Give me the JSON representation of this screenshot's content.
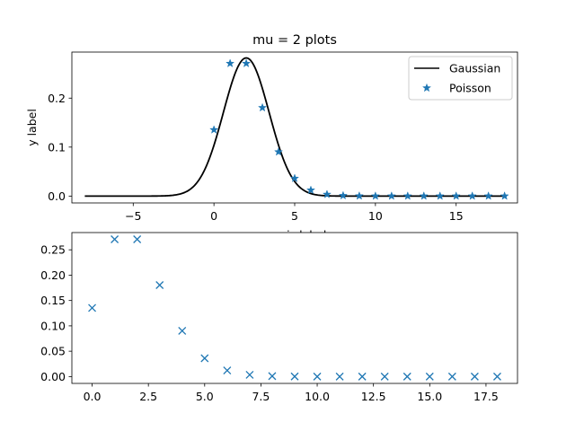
{
  "chart_data": [
    {
      "type": "line",
      "title": "mu = 2 plots",
      "xlabel": "x axis label",
      "ylabel": "y label",
      "xlim": [
        -8.8,
        18.8
      ],
      "ylim": [
        -0.014,
        0.294
      ],
      "xticks": [
        -5,
        0,
        5,
        10,
        15
      ],
      "yticks": [
        0.0,
        0.1,
        0.2
      ],
      "ytick_labels": [
        "0.0",
        "0.1",
        "0.2"
      ],
      "grid": false,
      "legend_position": "top-right",
      "series": [
        {
          "name": "Gaussian",
          "kind": "line",
          "color": "#000000",
          "x_range": [
            -8,
            18
          ],
          "mean": 2,
          "std": 1.4142,
          "formula": "exp(-(x-2)^2/4)/sqrt(4*pi)"
        },
        {
          "name": "Poisson",
          "kind": "scatter",
          "marker": "star",
          "color": "#1f77b4",
          "x": [
            0,
            1,
            2,
            3,
            4,
            5,
            6,
            7,
            8,
            9,
            10,
            11,
            12,
            13,
            14,
            15,
            16,
            17,
            18
          ],
          "y": [
            0.1353,
            0.2707,
            0.2707,
            0.1804,
            0.0902,
            0.0361,
            0.012,
            0.0034,
            0.0009,
            0.0002,
            0.0,
            0.0,
            0.0,
            0.0,
            0.0,
            0.0,
            0.0,
            0.0,
            0.0
          ]
        }
      ]
    },
    {
      "type": "scatter",
      "xlim": [
        -0.9,
        18.9
      ],
      "ylim": [
        -0.0135,
        0.284
      ],
      "xticks": [
        0.0,
        2.5,
        5.0,
        7.5,
        10.0,
        12.5,
        15.0,
        17.5
      ],
      "xtick_labels": [
        "0.0",
        "2.5",
        "5.0",
        "7.5",
        "10.0",
        "12.5",
        "15.0",
        "17.5"
      ],
      "yticks": [
        0.0,
        0.05,
        0.1,
        0.15,
        0.2,
        0.25
      ],
      "ytick_labels": [
        "0.00",
        "0.05",
        "0.10",
        "0.15",
        "0.20",
        "0.25"
      ],
      "grid": false,
      "series": [
        {
          "kind": "scatter",
          "marker": "x",
          "color": "#1f77b4",
          "x": [
            0,
            1,
            2,
            3,
            4,
            5,
            6,
            7,
            8,
            9,
            10,
            11,
            12,
            13,
            14,
            15,
            16,
            17,
            18
          ],
          "y": [
            0.1353,
            0.2707,
            0.2707,
            0.1804,
            0.0902,
            0.0361,
            0.012,
            0.0034,
            0.0009,
            0.0002,
            0.0,
            0.0,
            0.0,
            0.0,
            0.0,
            0.0,
            0.0,
            0.0,
            0.0
          ]
        }
      ]
    }
  ]
}
